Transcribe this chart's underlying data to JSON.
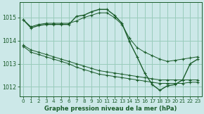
{
  "title": "Graphe pression niveau de la mer (hPa)",
  "bg_color": "#cce8e8",
  "grid_color": "#99ccbb",
  "line_color": "#1a5c2a",
  "ylim": [
    1011.6,
    1015.65
  ],
  "xlim": [
    -0.5,
    23.5
  ],
  "yticks": [
    1012,
    1013,
    1014,
    1015
  ],
  "xticks": [
    0,
    1,
    2,
    3,
    4,
    5,
    6,
    7,
    8,
    9,
    10,
    11,
    12,
    13,
    14,
    15,
    16,
    17,
    18,
    19,
    20,
    21,
    22,
    23
  ],
  "series": [
    {
      "x": [
        0,
        1,
        2,
        3,
        4,
        5,
        6,
        7,
        8,
        9,
        10,
        11,
        12,
        13,
        14,
        15,
        16,
        17,
        18,
        19,
        20,
        21,
        22,
        23
      ],
      "y": [
        1014.9,
        1014.55,
        1014.65,
        1014.7,
        1014.7,
        1014.7,
        1014.7,
        1015.05,
        1015.1,
        1015.25,
        1015.35,
        1015.35,
        1015.1,
        1014.75,
        1013.95,
        1013.3,
        1012.6,
        1012.1,
        1011.85,
        1012.05,
        1012.1,
        1012.3,
        1013.0,
        1013.2
      ],
      "lw": 1.0,
      "marker": true
    },
    {
      "x": [
        0,
        1,
        2,
        3,
        4,
        5,
        6,
        7,
        8,
        9,
        10,
        11,
        12,
        13,
        14,
        15,
        16,
        17,
        18,
        19,
        20,
        21,
        22,
        23
      ],
      "y": [
        1014.9,
        1014.6,
        1014.7,
        1014.75,
        1014.75,
        1014.75,
        1014.75,
        1014.85,
        1015.0,
        1015.1,
        1015.2,
        1015.2,
        1015.0,
        1014.7,
        1014.1,
        1013.7,
        1013.5,
        1013.35,
        1013.2,
        1013.1,
        1013.15,
        1013.2,
        1013.25,
        1013.3
      ],
      "lw": 0.7,
      "marker": true
    },
    {
      "x": [
        0,
        1,
        2,
        3,
        4,
        5,
        6,
        7,
        8,
        9,
        10,
        11,
        12,
        13,
        14,
        15,
        16,
        17,
        18,
        19,
        20,
        21,
        22,
        23
      ],
      "y": [
        1013.8,
        1013.6,
        1013.5,
        1013.4,
        1013.3,
        1013.2,
        1013.1,
        1013.0,
        1012.9,
        1012.8,
        1012.7,
        1012.65,
        1012.6,
        1012.55,
        1012.5,
        1012.45,
        1012.4,
        1012.35,
        1012.3,
        1012.3,
        1012.3,
        1012.3,
        1012.3,
        1012.3
      ],
      "lw": 0.7,
      "marker": true
    },
    {
      "x": [
        0,
        1,
        2,
        3,
        4,
        5,
        6,
        7,
        8,
        9,
        10,
        11,
        12,
        13,
        14,
        15,
        16,
        17,
        18,
        19,
        20,
        21,
        22,
        23
      ],
      "y": [
        1013.75,
        1013.5,
        1013.4,
        1013.3,
        1013.2,
        1013.1,
        1013.0,
        1012.85,
        1012.75,
        1012.65,
        1012.55,
        1012.5,
        1012.45,
        1012.4,
        1012.35,
        1012.3,
        1012.25,
        1012.2,
        1012.15,
        1012.15,
        1012.15,
        1012.15,
        1012.2,
        1012.2
      ],
      "lw": 0.7,
      "marker": true
    }
  ],
  "xlabel_fontsize": 6.0,
  "tick_fontsize": 5.2,
  "ytick_fontsize": 5.8
}
